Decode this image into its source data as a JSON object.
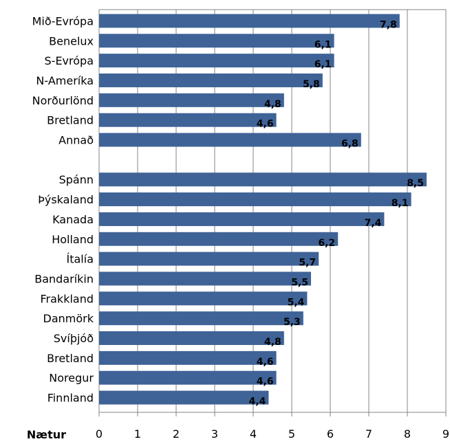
{
  "chart_data": {
    "type": "bar",
    "orientation": "horizontal",
    "xlabel": "Nætur",
    "xlim": [
      0,
      9
    ],
    "xticks": [
      "0",
      "1",
      "2",
      "3",
      "4",
      "5",
      "6",
      "7",
      "8",
      "9"
    ],
    "grid": "vertical",
    "bar_color": "#3f6397",
    "groups": [
      {
        "categories": [
          "Mið-Evrópa",
          "Benelux",
          "S-Evrópa",
          "N-Ameríka",
          "Norðurlönd",
          "Bretland",
          "Annað"
        ],
        "values": [
          7.8,
          6.1,
          6.1,
          5.8,
          4.8,
          4.6,
          6.8
        ],
        "labels": [
          "7,8",
          "6,1",
          "6,1",
          "5,8",
          "4,8",
          "4,6",
          "6,8"
        ]
      },
      {
        "categories": [
          "Spánn",
          "Þýskaland",
          "Kanada",
          "Holland",
          "Ítalía",
          "Bandaríkin",
          "Frakkland",
          "Danmörk",
          "Svíþjóð",
          "Bretland",
          "Noregur",
          "Finnland"
        ],
        "values": [
          8.5,
          8.1,
          7.4,
          6.2,
          5.7,
          5.5,
          5.4,
          5.3,
          4.8,
          4.6,
          4.6,
          4.4
        ],
        "labels": [
          "8,5",
          "8,1",
          "7,4",
          "6,2",
          "5,7",
          "5,5",
          "5,4",
          "5,3",
          "4,8",
          "4,6",
          "4,6",
          "4,4"
        ]
      }
    ]
  }
}
